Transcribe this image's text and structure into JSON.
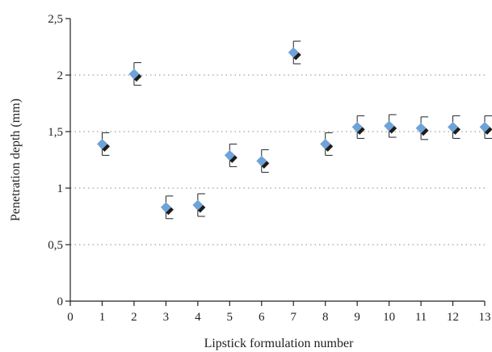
{
  "chart_data": {
    "type": "scatter",
    "title": "",
    "xlabel": "Lipstick formulation number",
    "ylabel": "Penetration depth (mm)",
    "xlim": [
      0,
      13
    ],
    "ylim": [
      0,
      2.5
    ],
    "x_ticks": [
      "0",
      "1",
      "2",
      "3",
      "4",
      "5",
      "6",
      "7",
      "8",
      "9",
      "10",
      "11",
      "12",
      "13"
    ],
    "y_ticks": [
      "0",
      "0,5",
      "1",
      "1,5",
      "2",
      "2,5"
    ],
    "grid": "horizontal dotted",
    "marker": "diamond",
    "colors": {
      "marker": "#6fa3d8",
      "shadow": "#1c1c1c",
      "axis": "#222222",
      "grid": "#888888"
    },
    "series": [
      {
        "x": [
          1,
          2,
          3,
          4,
          5,
          6,
          7,
          8,
          9,
          10,
          11,
          12,
          13
        ],
        "values": [
          1.39,
          2.01,
          0.83,
          0.85,
          1.29,
          1.24,
          2.2,
          1.39,
          1.54,
          1.55,
          1.53,
          1.54,
          1.54
        ],
        "error": [
          0.1,
          0.1,
          0.1,
          0.1,
          0.1,
          0.1,
          0.1,
          0.1,
          0.1,
          0.1,
          0.1,
          0.1,
          0.1
        ]
      }
    ]
  }
}
